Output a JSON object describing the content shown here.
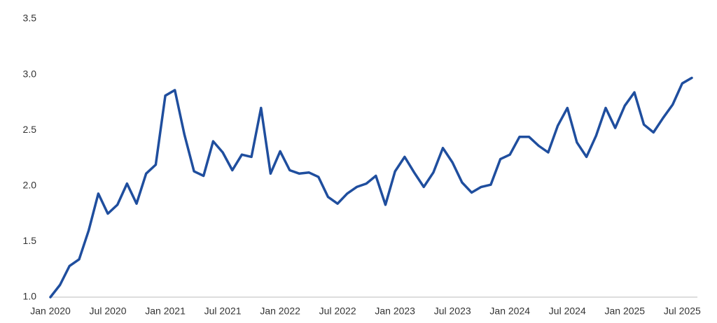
{
  "chart_data": {
    "type": "line",
    "categories": [
      "Jan 2020",
      null,
      null,
      null,
      null,
      null,
      "Jul 2020",
      null,
      null,
      null,
      null,
      null,
      "Jan 2021",
      null,
      null,
      null,
      null,
      null,
      "Jul 2021",
      null,
      null,
      null,
      null,
      null,
      "Jan 2022",
      null,
      null,
      null,
      null,
      null,
      "Jul 2022",
      null,
      null,
      null,
      null,
      null,
      "Jan 2023",
      null,
      null,
      null,
      null,
      null,
      "Jul 2023",
      null,
      null,
      null,
      null,
      null,
      "Jan 2024",
      null,
      null,
      null,
      null,
      null,
      "Jul 2024",
      null,
      null,
      null,
      null,
      null,
      "Jan 2025",
      null,
      null,
      null,
      null,
      null,
      "Jul 2025",
      null
    ],
    "values": [
      1.0,
      1.11,
      1.28,
      1.34,
      1.6,
      1.93,
      1.75,
      1.83,
      2.02,
      1.84,
      2.11,
      2.19,
      2.81,
      2.86,
      2.46,
      2.13,
      2.09,
      2.4,
      2.3,
      2.14,
      2.28,
      2.26,
      2.7,
      2.11,
      2.31,
      2.14,
      2.11,
      2.12,
      2.08,
      1.9,
      1.84,
      1.93,
      1.99,
      2.02,
      2.09,
      1.83,
      2.13,
      2.26,
      2.12,
      1.99,
      2.12,
      2.34,
      2.21,
      2.03,
      1.94,
      1.99,
      2.01,
      2.24,
      2.28,
      2.44,
      2.44,
      2.36,
      2.3,
      2.54,
      2.7,
      2.39,
      2.26,
      2.45,
      2.7,
      2.52,
      2.72,
      2.84,
      2.55,
      2.48,
      2.61,
      2.73,
      2.92,
      2.97
    ],
    "color": "#1f4e9e",
    "ylim": [
      1.0,
      3.5
    ],
    "yticks": [
      {
        "value": 1.0,
        "label": "1.0"
      },
      1.5,
      {
        "value": 2.0,
        "label": "2.0"
      },
      2.5,
      {
        "value": 3.0,
        "label": "3.0"
      },
      3.5
    ],
    "grid": false
  }
}
